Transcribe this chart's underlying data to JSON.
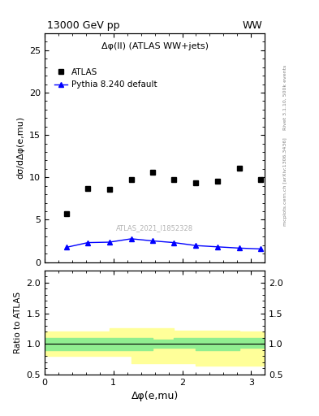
{
  "title_left": "13000 GeV pp",
  "title_right": "WW",
  "main_title": "Δφ(ll) (ATLAS WW+jets)",
  "xlabel": "Δφ(e,mu)",
  "ylabel_main": "dσ/dΔφ(e,mu)",
  "ylabel_ratio": "Ratio to ATLAS",
  "right_label1": "Rivet 3.1.10, 500k events",
  "right_label2": "mcplots.cern.ch [arXiv:1306.3436]",
  "watermark": "ATLAS_2021_I1852328",
  "atlas_x": [
    0.32,
    0.63,
    0.94,
    1.26,
    1.57,
    1.88,
    2.2,
    2.51,
    2.83,
    3.14
  ],
  "atlas_y": [
    5.7,
    8.7,
    8.6,
    9.7,
    10.6,
    9.7,
    9.4,
    9.5,
    11.1,
    9.7
  ],
  "pythia_x": [
    0.32,
    0.63,
    0.94,
    1.26,
    1.57,
    1.88,
    2.2,
    2.51,
    2.83,
    3.14
  ],
  "pythia_y": [
    1.75,
    2.3,
    2.35,
    2.75,
    2.5,
    2.3,
    1.95,
    1.8,
    1.65,
    1.55
  ],
  "ratio_edges": [
    0.0,
    0.63,
    0.94,
    1.26,
    1.57,
    1.88,
    2.2,
    2.51,
    2.83,
    3.14,
    3.2
  ],
  "ratio_green_lo": [
    0.9,
    0.9,
    0.9,
    0.9,
    0.93,
    0.93,
    0.9,
    0.9,
    0.93,
    0.93
  ],
  "ratio_green_hi": [
    1.1,
    1.1,
    1.1,
    1.1,
    1.07,
    1.1,
    1.1,
    1.1,
    1.1,
    1.1
  ],
  "ratio_yellow_lo": [
    0.8,
    0.8,
    0.8,
    0.68,
    0.68,
    0.68,
    0.65,
    0.65,
    0.65,
    0.65
  ],
  "ratio_yellow_hi": [
    1.2,
    1.2,
    1.25,
    1.25,
    1.25,
    1.22,
    1.22,
    1.22,
    1.2,
    1.2
  ],
  "xlim": [
    0.0,
    3.2
  ],
  "ylim_main": [
    0,
    27
  ],
  "ylim_ratio": [
    0.5,
    2.2
  ],
  "yticks_main": [
    0,
    5,
    10,
    15,
    20,
    25
  ],
  "yticks_ratio": [
    0.5,
    1.0,
    1.5,
    2.0
  ],
  "xticks": [
    0,
    1,
    2,
    3
  ],
  "atlas_color": "#000000",
  "pythia_color": "#0000ff",
  "green_color": "#90EE90",
  "yellow_color": "#FFFF99"
}
